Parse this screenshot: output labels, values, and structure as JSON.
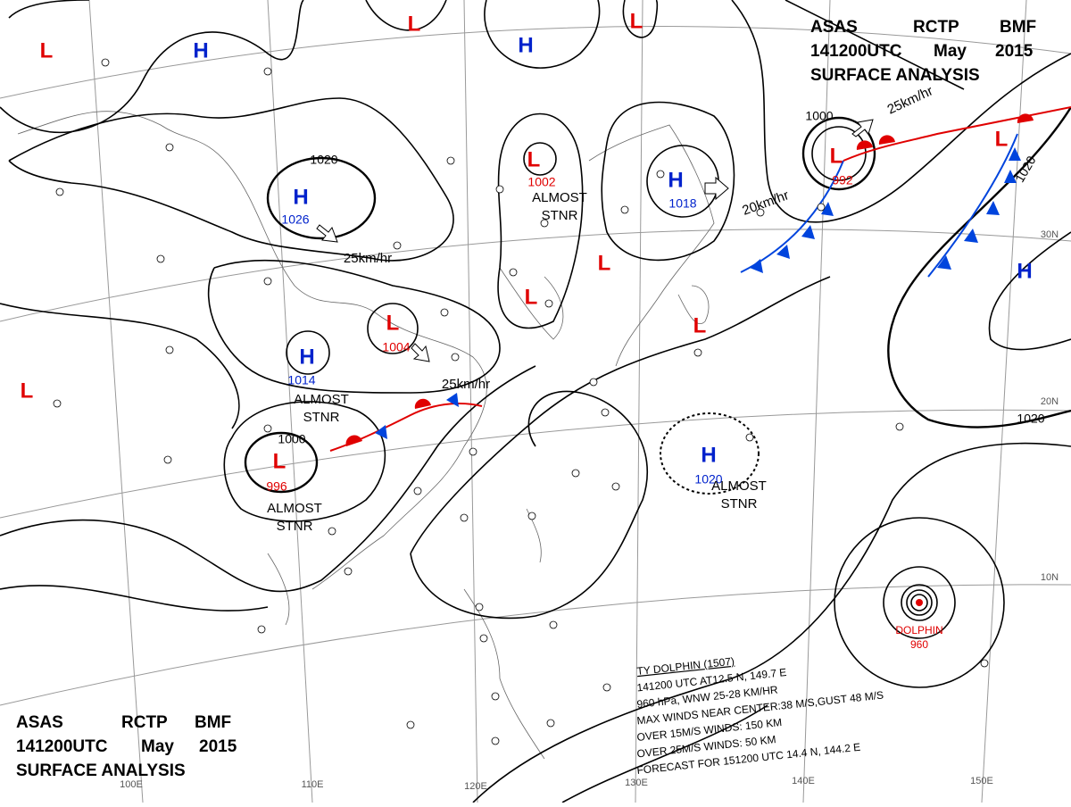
{
  "header_top": {
    "lines": [
      [
        "ASAS",
        "RCTP",
        "BMF"
      ],
      [
        "141200UTC",
        "May",
        "2015"
      ],
      [
        "SURFACE ANALYSIS"
      ]
    ]
  },
  "header_bottom": {
    "lines": [
      [
        "ASAS",
        "RCTP",
        "BMF"
      ],
      [
        "141200UTC",
        "May",
        "2015"
      ],
      [
        "SURFACE ANALYSIS"
      ]
    ]
  },
  "centers": [
    {
      "symbol": "L"
    },
    {
      "symbol": "H"
    },
    {
      "symbol": "L"
    },
    {
      "symbol": "H"
    },
    {
      "symbol": "L"
    },
    {
      "symbol": "L",
      "pressure": "1002"
    },
    {
      "symbol": "H",
      "pressure": "1026"
    },
    {
      "symbol": "H",
      "pressure": "1018"
    },
    {
      "symbol": "L",
      "pressure": "992"
    },
    {
      "symbol": "L"
    },
    {
      "symbol": "L"
    },
    {
      "symbol": "L"
    },
    {
      "symbol": "L",
      "pressure": "1004"
    },
    {
      "symbol": "H",
      "pressure": "1014"
    },
    {
      "symbol": "L"
    },
    {
      "symbol": "L"
    },
    {
      "symbol": "L",
      "pressure": "996"
    },
    {
      "symbol": "H",
      "pressure": "1020"
    },
    {
      "symbol": "H"
    }
  ],
  "isobar_labels": [
    "1020",
    "1000",
    "1020",
    "1000",
    "1020"
  ],
  "movements": [
    "25km/hr",
    "20km/hr",
    "25km/hr",
    "25km/hr"
  ],
  "notes": [
    [
      "ALMOST",
      "STNR"
    ],
    [
      "ALMOST",
      "STNR"
    ],
    [
      "ALMOST",
      "STNR"
    ],
    [
      "ALMOST",
      "STNR"
    ]
  ],
  "latitudes": [
    "30N",
    "20N",
    "10N"
  ],
  "longitudes": [
    "100E",
    "110E",
    "120E",
    "130E",
    "140E",
    "150E"
  ],
  "typhoon": {
    "name": "DOLPHIN",
    "pressure": "960",
    "info": [
      "TY DOLPHIN (1507)",
      "141200 UTC AT12.5 N, 149.7 E",
      "960 hPa, WNW 25-28 KM/HR",
      "MAX WINDS NEAR CENTER:38 M/S,GUST 48 M/S",
      "OVER 15M/S WINDS: 150 KM",
      "OVER 25M/S WINDS: 50 KM",
      "FORECAST FOR 151200 UTC 14.4 N, 144.2 E"
    ]
  }
}
